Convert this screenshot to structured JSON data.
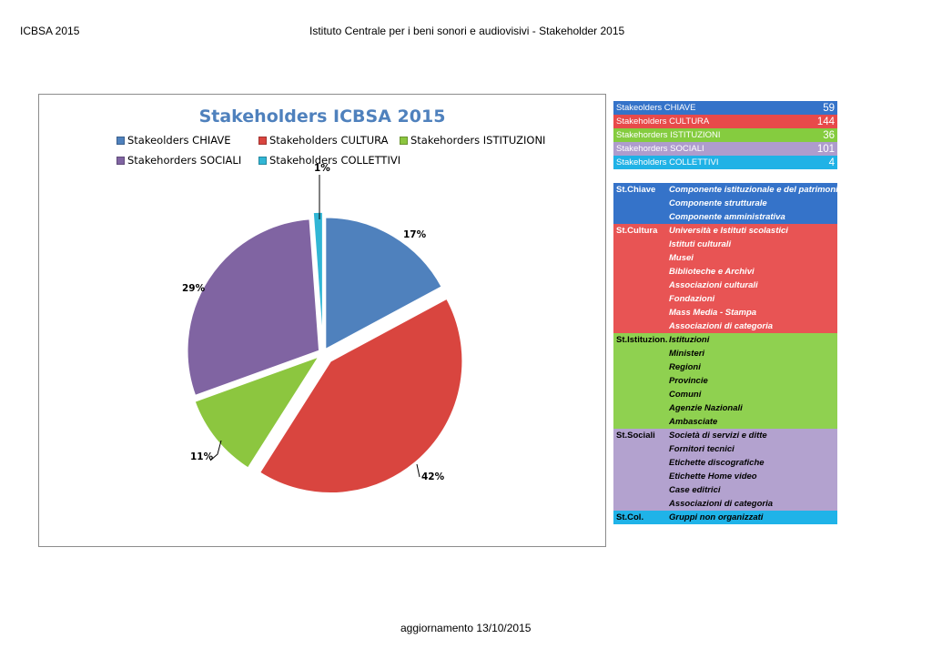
{
  "header": {
    "left": "ICBSA 2015",
    "center": "Istituto Centrale per i beni sonori e audiovisivi - Stakeholder 2015"
  },
  "footer": "aggiornamento 13/10/2015",
  "chart_data": {
    "type": "pie",
    "title": "Stakeholders ICBSA 2015",
    "categories": [
      "Stakeolders CHIAVE",
      "Stakeholders CULTURA",
      "Stakehorders ISTITUZIONI",
      "Stakehorders SOCIALI",
      "Stakeholders COLLETTIVI"
    ],
    "values": [
      59,
      144,
      36,
      101,
      4
    ],
    "percent_labels": [
      "17%",
      "42%",
      "11%",
      "29%",
      "1%"
    ],
    "colors": [
      "#4f81bd",
      "#d9453f",
      "#8cc63f",
      "#8064a2",
      "#31b6d5"
    ],
    "legend_position": "top",
    "exploded": true
  },
  "summary": [
    {
      "label": "Stakeolders CHIAVE",
      "value": "59",
      "color": "#3573c9"
    },
    {
      "label": "Stakeholders CULTURA",
      "value": "144",
      "color": "#e84a4a"
    },
    {
      "label": "Stakehorders ISTITUZIONI",
      "value": "36",
      "color": "#85cc3f"
    },
    {
      "label": "Stakehorders SOCIALI",
      "value": "101",
      "color": "#ae9ccd"
    },
    {
      "label": "Stakeholders COLLETTIVI",
      "value": "4",
      "color": "#20b2e6"
    }
  ],
  "groups": [
    {
      "label": "St.Chiave",
      "color": "#3573c9",
      "text_color": "#ffffff",
      "items": [
        "Componente istituzionale e del patrimonio",
        "Componente strutturale",
        "Componente amministrativa"
      ]
    },
    {
      "label": "St.Cultura",
      "color": "#e85454",
      "text_color": "#ffffff",
      "items": [
        "Università e Istituti scolastici",
        "Istituti culturali",
        "Musei",
        "Biblioteche e Archivi",
        "Associazioni culturali",
        "Fondazioni",
        "Mass Media - Stampa",
        "Associazioni di categoria"
      ]
    },
    {
      "label": "St.Istituzion.",
      "color": "#8fd150",
      "text_color": "#000000",
      "items": [
        "Istituzioni",
        "Ministeri",
        "Regioni",
        "Provincie",
        "Comuni",
        "Agenzie Nazionali",
        "Ambasciate"
      ]
    },
    {
      "label": "St.Sociali",
      "color": "#b3a2cf",
      "text_color": "#000000",
      "items": [
        "Società di servizi e ditte",
        "Fornitori tecnici",
        "Etichette discografiche",
        "Etichette Home video",
        "Case editrici",
        "Associazioni di categoria"
      ]
    },
    {
      "label": "St.Col.",
      "color": "#1fb3e8",
      "text_color": "#000000",
      "items": [
        "Gruppi non organizzati"
      ]
    }
  ]
}
